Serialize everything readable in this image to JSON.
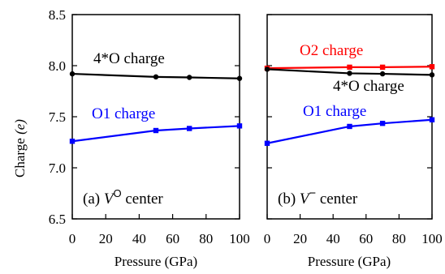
{
  "chart_data": [
    {
      "type": "line",
      "panel_label": "(a)",
      "panel_symbol": "V",
      "panel_superscript": "O",
      "panel_suffix": "center",
      "xlabel": "Pressure (GPa)",
      "ylabel": "Charge",
      "ylabel_unit": "(e)",
      "xlim": [
        0,
        100
      ],
      "ylim": [
        6.5,
        8.5
      ],
      "xticks": [
        "0",
        "20",
        "40",
        "60",
        "80",
        "100"
      ],
      "yticks": [
        "6.5",
        "7.0",
        "7.5",
        "8.0",
        "8.5"
      ],
      "series": [
        {
          "name": "4*O charge",
          "color": "#000000",
          "marker": "circle",
          "x": [
            0,
            50,
            70,
            100
          ],
          "y": [
            7.92,
            7.89,
            7.885,
            7.875
          ]
        },
        {
          "name": "O1 charge",
          "color": "#0000ff",
          "marker": "square",
          "x": [
            0,
            50,
            70,
            100
          ],
          "y": [
            7.26,
            7.365,
            7.385,
            7.41
          ]
        }
      ]
    },
    {
      "type": "line",
      "panel_label": "(b)",
      "panel_symbol": "V",
      "panel_superscript": "−",
      "panel_suffix": "center",
      "xlabel": "Pressure (GPa)",
      "xlim": [
        0,
        100
      ],
      "ylim": [
        6.5,
        8.5
      ],
      "xticks": [
        "0",
        "20",
        "40",
        "60",
        "80",
        "100"
      ],
      "series": [
        {
          "name": "O2 charge",
          "color": "#ff0000",
          "marker": "square",
          "x": [
            0,
            50,
            70,
            100
          ],
          "y": [
            7.975,
            7.985,
            7.985,
            7.99
          ]
        },
        {
          "name": "4*O charge",
          "color": "#000000",
          "marker": "circle",
          "x": [
            0,
            50,
            70,
            100
          ],
          "y": [
            7.965,
            7.925,
            7.92,
            7.91
          ]
        },
        {
          "name": "O1 charge",
          "color": "#0000ff",
          "marker": "square",
          "x": [
            0,
            50,
            70,
            100
          ],
          "y": [
            7.24,
            7.405,
            7.435,
            7.47
          ]
        }
      ]
    }
  ]
}
